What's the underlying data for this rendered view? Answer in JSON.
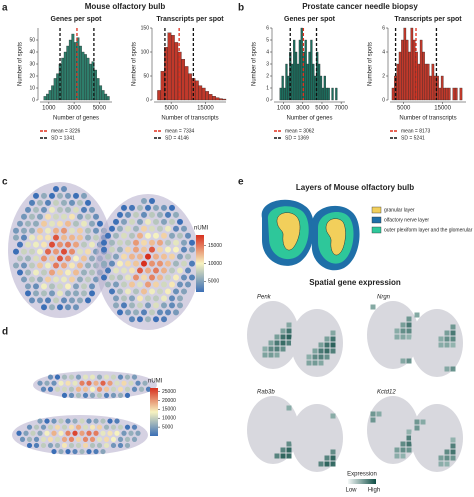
{
  "header": {
    "left_title": "Mouse olfactory bulb",
    "right_title": "Prostate cancer needle biopsy"
  },
  "panel_letters": {
    "a": "a",
    "b": "b",
    "c": "c",
    "d": "d",
    "e": "e"
  },
  "chart_data": [
    {
      "type": "histogram",
      "title": "Genes per spot",
      "xlabel": "Number of genes",
      "ylabel": "Number of spots",
      "color": "#2e7d6b",
      "bins": [
        600,
        800,
        1000,
        1200,
        1400,
        1600,
        1800,
        2000,
        2200,
        2400,
        2600,
        2800,
        3000,
        3200,
        3400,
        3600,
        3800,
        4000,
        4200,
        4400,
        4600,
        4800,
        5000,
        5200,
        5400,
        5600,
        5800
      ],
      "counts": [
        3,
        5,
        8,
        12,
        18,
        22,
        30,
        35,
        40,
        45,
        50,
        55,
        48,
        52,
        45,
        40,
        38,
        35,
        30,
        32,
        25,
        18,
        12,
        8,
        5,
        3
      ],
      "xlim": [
        300,
        6000
      ],
      "xticks": [
        1000,
        3000,
        5000
      ],
      "ylim": [
        0,
        60
      ],
      "yticks": [
        0,
        10,
        20,
        30,
        40,
        50
      ],
      "mean": {
        "value": 3226,
        "label": "mean = 3226"
      },
      "sd": {
        "value": 1341,
        "label": "SD = 1341"
      },
      "mean_color": "#e0301e",
      "sd_color": "#111111"
    },
    {
      "type": "histogram",
      "title": "Transcripts per spot",
      "xlabel": "Number of transcripts",
      "ylabel": "Number of spots",
      "color": "#c0392b",
      "bins": [
        1000,
        2000,
        3000,
        4000,
        5000,
        6000,
        7000,
        8000,
        9000,
        10000,
        11000,
        12000,
        13000,
        14000,
        15000,
        16000,
        17000,
        18000,
        19000,
        20000,
        21000
      ],
      "counts": [
        20,
        60,
        110,
        140,
        135,
        120,
        100,
        85,
        70,
        55,
        45,
        40,
        30,
        25,
        18,
        12,
        8,
        5,
        3,
        2
      ],
      "xlim": [
        0,
        21000
      ],
      "xticks": [
        5000,
        15000
      ],
      "ylim": [
        0,
        150
      ],
      "yticks": [
        0,
        50,
        100,
        150
      ],
      "mean": {
        "value": 7334,
        "label": "mean = 7334"
      },
      "sd": {
        "value": 4146,
        "label": "SD = 4146"
      },
      "mean_color": "#e0301e",
      "sd_color": "#111111"
    },
    {
      "type": "histogram",
      "title": "Genes per spot",
      "xlabel": "Number of genes",
      "ylabel": "Number of spots",
      "color": "#1d6e5e",
      "bins": [
        600,
        800,
        1000,
        1200,
        1400,
        1600,
        1800,
        2000,
        2200,
        2400,
        2600,
        2800,
        3000,
        3200,
        3400,
        3600,
        3800,
        4000,
        4200,
        4400,
        4600,
        4800,
        5000,
        5200,
        5400,
        5600,
        5800,
        6000,
        6200,
        6400,
        6600
      ],
      "counts": [
        1,
        2,
        1,
        3,
        2,
        4,
        3,
        5,
        4,
        3,
        5,
        6,
        4,
        5,
        3,
        4,
        5,
        3,
        2,
        4,
        3,
        2,
        1,
        2,
        1,
        1,
        0,
        1,
        0,
        1
      ],
      "xlim": [
        0,
        7400
      ],
      "xticks": [
        1000,
        3000,
        5000,
        7000
      ],
      "ylim": [
        0,
        6
      ],
      "yticks": [
        0,
        1,
        2,
        3,
        4,
        5,
        6
      ],
      "mean": {
        "value": 3062,
        "label": "mean = 3062"
      },
      "sd": {
        "value": 1369,
        "label": "SD = 1369"
      },
      "mean_color": "#e0301e",
      "sd_color": "#111111"
    },
    {
      "type": "histogram",
      "title": "Transcripts per spot",
      "xlabel": "Number of transcripts",
      "ylabel": "Number of spots",
      "color": "#c0392b",
      "bins": [
        2000,
        2600,
        3200,
        3800,
        4400,
        5000,
        5600,
        6200,
        6800,
        7400,
        8000,
        8600,
        9200,
        9800,
        10400,
        11000,
        11600,
        12200,
        12800,
        13400,
        14000,
        14600,
        15200,
        15800,
        16400,
        17000,
        17600,
        18200,
        18800,
        19400,
        20000
      ],
      "counts": [
        1,
        2,
        3,
        4,
        5,
        6,
        5,
        4,
        6,
        5,
        4,
        3,
        5,
        4,
        3,
        3,
        2,
        3,
        2,
        2,
        1,
        2,
        1,
        1,
        1,
        0,
        1,
        1,
        0,
        1
      ],
      "xlim": [
        1500,
        21000
      ],
      "xticks": [
        5000,
        15000
      ],
      "ylim": [
        0,
        6
      ],
      "yticks": [
        0,
        2,
        4,
        6
      ],
      "mean": {
        "value": 8173,
        "label": "mean = 8173"
      },
      "sd": {
        "value": 5241,
        "label": "SD = 5241"
      },
      "mean_color": "#e0301e",
      "sd_color": "#111111"
    }
  ],
  "colorbars": [
    {
      "title": "nUMI",
      "lim": [
        2000,
        18000
      ],
      "ticks": [
        5000,
        10000,
        15000
      ],
      "colors": [
        "#3b6fb6",
        "#f7f3c0",
        "#d7301f"
      ]
    },
    {
      "title": "nUMI",
      "lim": [
        0,
        27000
      ],
      "ticks": [
        5000,
        10000,
        15000,
        20000,
        25000
      ],
      "colors": [
        "#3b6fb6",
        "#f7f3c0",
        "#d7301f"
      ]
    }
  ],
  "panel_e": {
    "title": "Layers of Mouse olfactory bulb",
    "layers": [
      {
        "label": "granular layer",
        "color": "#f2cf5b"
      },
      {
        "label": "olfactory nerve layer",
        "color": "#1f6fa8"
      },
      {
        "label": "outer plexiform layer and the glomerular layer",
        "color": "#2ec79a"
      }
    ],
    "subtitle": "Spatial gene expression",
    "genes": [
      "Penk",
      "Nrgn",
      "Rab3b",
      "Kctd12"
    ],
    "expression_legend": {
      "title": "Expression",
      "low": "Low",
      "high": "High"
    }
  }
}
